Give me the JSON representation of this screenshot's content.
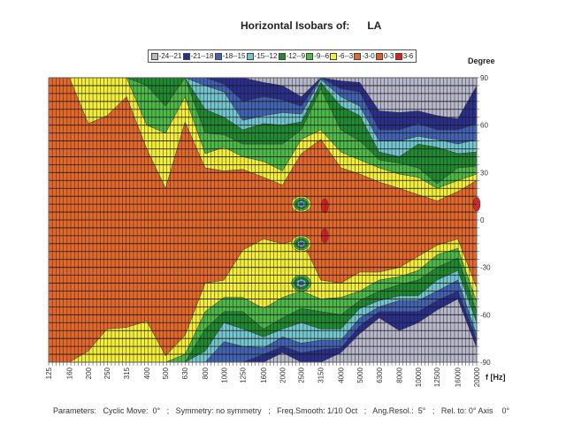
{
  "chart_data": {
    "type": "heatmap",
    "subtype": "contour",
    "title": "Horizontal Isobars of:",
    "title_subject": "LA",
    "ylabel": "Degree",
    "xlabel": "f [Hz]",
    "x_scale": "log",
    "xlim": [
      125,
      20000
    ],
    "ylim": [
      -90,
      90
    ],
    "y_ticks": [
      "90",
      "60",
      "30",
      "0",
      "-30",
      "-60",
      "-90"
    ],
    "y_tick_values": [
      90,
      60,
      30,
      0,
      -30,
      -60,
      -90
    ],
    "x_ticks": [
      "125",
      "160",
      "200",
      "250",
      "315",
      "400",
      "500",
      "630",
      "800",
      "1000",
      "1250",
      "1600",
      "2000",
      "2500",
      "3150",
      "4000",
      "5000",
      "6300",
      "8000",
      "10000",
      "12500",
      "16000",
      "20000"
    ],
    "grid": true,
    "legend_placement": "top",
    "levels": [
      {
        "label": "-24--21",
        "color": "#b8b8cc"
      },
      {
        "label": "-21--18",
        "color": "#2a2f8c"
      },
      {
        "label": "-18--15",
        "color": "#4263b4"
      },
      {
        "label": "-15--12",
        "color": "#72c6cf"
      },
      {
        "label": "-12--9",
        "color": "#1f8a30"
      },
      {
        "label": "-9--6",
        "color": "#4dba48"
      },
      {
        "label": "-6--3",
        "color": "#f2ee3a"
      },
      {
        "label": "-3-0",
        "color": "#e4682c"
      },
      {
        "label": "0-3",
        "color": "#e65a22"
      },
      {
        "label": "3-6",
        "color": "#dc2020"
      }
    ],
    "boundary_thresholds_db": [
      -3,
      -6,
      -9,
      -12,
      -15,
      -18,
      -21
    ],
    "frequencies": [
      125,
      160,
      200,
      250,
      315,
      400,
      500,
      630,
      800,
      1000,
      1250,
      1600,
      2000,
      2500,
      3150,
      4000,
      5000,
      6300,
      8000,
      10000,
      12500,
      16000,
      20000
    ],
    "upper_boundaries_deg": [
      [
        90,
        90,
        90,
        90,
        90,
        90,
        90
      ],
      [
        90,
        90,
        90,
        90,
        90,
        90,
        90
      ],
      [
        61,
        90,
        90,
        90,
        90,
        90,
        90
      ],
      [
        66,
        90,
        90,
        90,
        90,
        90,
        90
      ],
      [
        78,
        90,
        90,
        90,
        90,
        90,
        90
      ],
      [
        45,
        60,
        85,
        90,
        90,
        90,
        90
      ],
      [
        20,
        55,
        72,
        90,
        90,
        90,
        90
      ],
      [
        62,
        78,
        90,
        90,
        90,
        90,
        90
      ],
      [
        33,
        42,
        55,
        70,
        85,
        90,
        90
      ],
      [
        31,
        46,
        54,
        65,
        81,
        86,
        90
      ],
      [
        32,
        40,
        48,
        57,
        63,
        75,
        90
      ],
      [
        27,
        37,
        48,
        61,
        66,
        78,
        87
      ],
      [
        22,
        31,
        48,
        60,
        68,
        76,
        85
      ],
      [
        42,
        51,
        57,
        62,
        67,
        72,
        78
      ],
      [
        51,
        57,
        83,
        87,
        89,
        90,
        90
      ],
      [
        33,
        43,
        57,
        72,
        78,
        83,
        88
      ],
      [
        29,
        38,
        50,
        66,
        72,
        81,
        87
      ],
      [
        24,
        33,
        38,
        43,
        50,
        57,
        69
      ],
      [
        20,
        29,
        36,
        40,
        50,
        57,
        68
      ],
      [
        16,
        27,
        33,
        48,
        53,
        61,
        69
      ],
      [
        12,
        20,
        23,
        46,
        51,
        57,
        66
      ],
      [
        18,
        25,
        33,
        42,
        48,
        57,
        64
      ],
      [
        25,
        29,
        34,
        43,
        51,
        61,
        85
      ]
    ],
    "lower_boundaries_deg": [
      [
        -90,
        -90,
        -90,
        -90,
        -90,
        -90,
        -90
      ],
      [
        -90,
        -90,
        -90,
        -90,
        -90,
        -90,
        -90
      ],
      [
        -83,
        -90,
        -90,
        -90,
        -90,
        -90,
        -90
      ],
      [
        -69,
        -90,
        -90,
        -90,
        -90,
        -90,
        -90
      ],
      [
        -68,
        -90,
        -90,
        -90,
        -90,
        -90,
        -90
      ],
      [
        -64,
        -90,
        -90,
        -90,
        -90,
        -90,
        -90
      ],
      [
        -86,
        -90,
        -90,
        -90,
        -90,
        -90,
        -90
      ],
      [
        -73,
        -85,
        -90,
        -90,
        -90,
        -90,
        -90
      ],
      [
        -40,
        -58,
        -69,
        -83,
        -90,
        -90,
        -90
      ],
      [
        -38,
        -49,
        -58,
        -65,
        -77,
        -90,
        -90
      ],
      [
        -19,
        -49,
        -58,
        -69,
        -80,
        -90,
        -90
      ],
      [
        -12,
        -56,
        -69,
        -74,
        -81,
        -85,
        -90
      ],
      [
        -15,
        -49,
        -62,
        -69,
        -74,
        -80,
        -84
      ],
      [
        -12,
        -45,
        -56,
        -65,
        -78,
        -84,
        -90
      ],
      [
        -38,
        -50,
        -58,
        -69,
        -76,
        -82,
        -90
      ],
      [
        -40,
        -49,
        -60,
        -69,
        -76,
        -81,
        -84
      ],
      [
        -33,
        -45,
        -51,
        -56,
        -62,
        -67,
        -72
      ],
      [
        -33,
        -38,
        -45,
        -51,
        -55,
        -58,
        -62
      ],
      [
        -30,
        -36,
        -41,
        -48,
        -51,
        -58,
        -70
      ],
      [
        -23,
        -32,
        -38,
        -48,
        -51,
        -58,
        -65
      ],
      [
        -16,
        -22,
        -30,
        -38,
        -45,
        -51,
        -57
      ],
      [
        -12,
        -18,
        -24,
        -32,
        -38,
        -45,
        -50
      ],
      [
        -43,
        -52,
        -58,
        -65,
        -73,
        -76,
        -81
      ]
    ],
    "islands": [
      {
        "f": 2500,
        "angle": 10,
        "levels": [
          "-6--3",
          "-9--6",
          "-12--9",
          "-15--12",
          "-18--15"
        ]
      },
      {
        "f": 2500,
        "angle": -15,
        "levels": [
          "-6--3",
          "-9--6",
          "-12--9",
          "-15--12",
          "-18--15"
        ]
      },
      {
        "f": 2500,
        "angle": -40,
        "levels": [
          "-9--6",
          "-12--9",
          "-15--12",
          "-18--15"
        ]
      },
      {
        "f": 3300,
        "angle": 9,
        "levels": [
          "3-6"
        ]
      },
      {
        "f": 3300,
        "angle": -10,
        "levels": [
          "3-6"
        ]
      },
      {
        "f": 20000,
        "angle": 10,
        "levels": [
          "3-6"
        ]
      }
    ]
  },
  "footer": {
    "params": "Parameters:   Cyclic Move:  0°   ;   Symmetry: no symmetry   ;   Freq.Smooth: 1/10 Oct   ;   Ang.Resol.:  5°   ;   Rel. to: 0° Axis    0°"
  }
}
